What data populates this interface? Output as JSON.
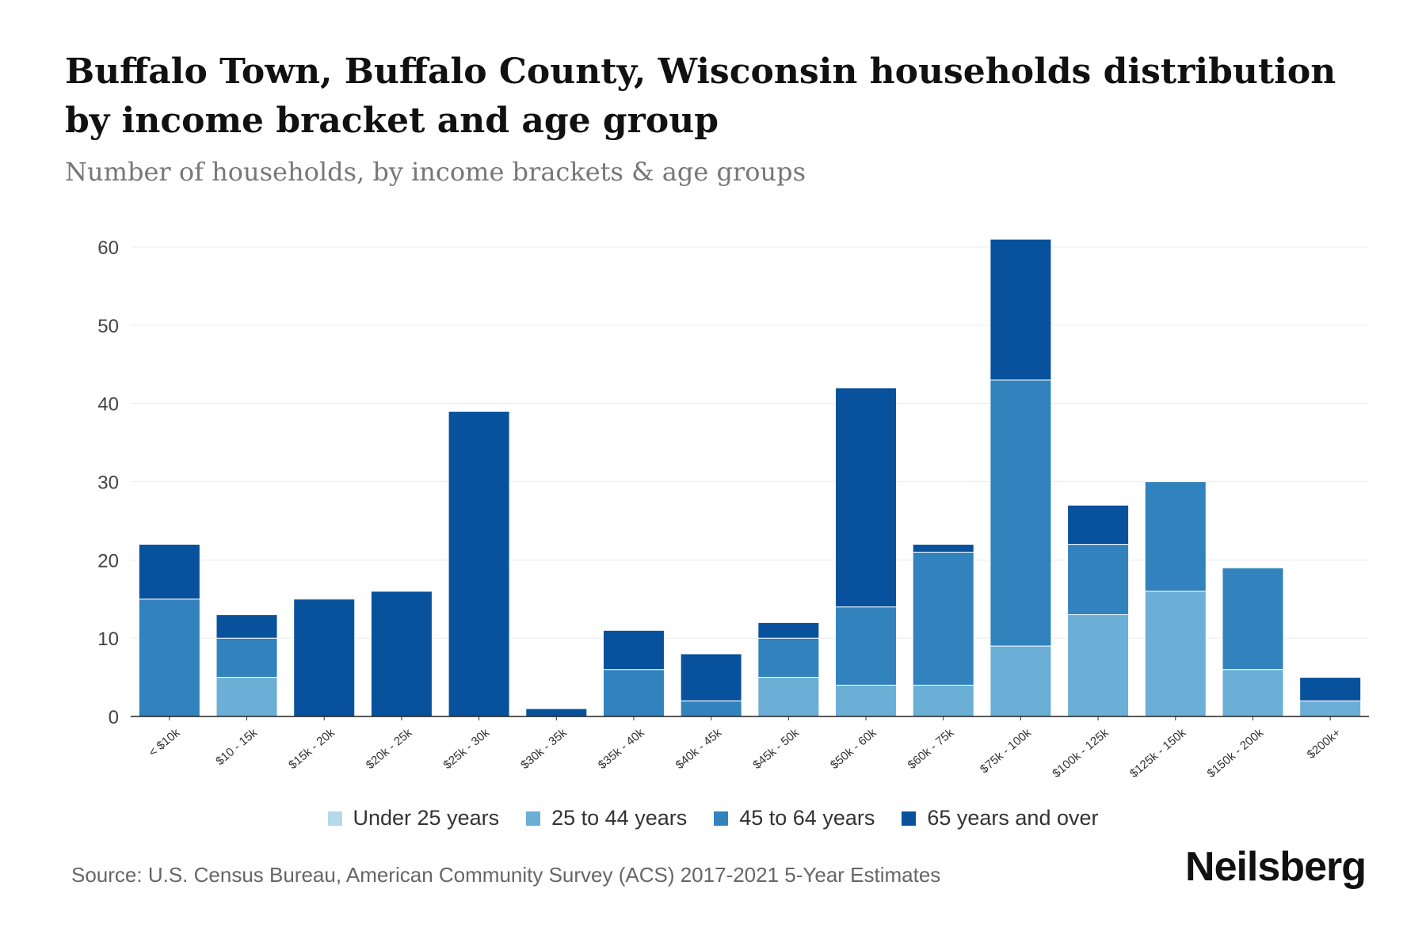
{
  "chart_data": {
    "type": "bar",
    "stacked": true,
    "title": "Buffalo Town, Buffalo County, Wisconsin households distribution by income bracket and age group",
    "subtitle": "Number of households, by income brackets & age groups",
    "xlabel": "",
    "ylabel": "",
    "ylim": [
      0,
      60
    ],
    "yticks": [
      0,
      10,
      20,
      30,
      40,
      50,
      60
    ],
    "grid": true,
    "legend_position": "bottom",
    "categories": [
      "< $10k",
      "$10 - 15k",
      "$15k - 20k",
      "$20k - 25k",
      "$25k - 30k",
      "$30k - 35k",
      "$35k - 40k",
      "$40k - 45k",
      "$45k - 50k",
      "$50k - 60k",
      "$60k - 75k",
      "$75k - 100k",
      "$100k - 125k",
      "$125k - 150k",
      "$150k - 200k",
      "$200k+"
    ],
    "series": [
      {
        "name": "Under 25 years",
        "color": "#b3d9ea",
        "values": [
          0,
          0,
          0,
          0,
          0,
          0,
          0,
          0,
          0,
          0,
          0,
          0,
          0,
          0,
          0,
          0
        ]
      },
      {
        "name": "25 to 44 years",
        "color": "#6baed6",
        "values": [
          0,
          5,
          0,
          0,
          0,
          0,
          0,
          0,
          5,
          4,
          4,
          9,
          13,
          16,
          6,
          2
        ]
      },
      {
        "name": "45 to 64 years",
        "color": "#3182bd",
        "values": [
          15,
          5,
          0,
          0,
          0,
          0,
          6,
          2,
          5,
          10,
          17,
          34,
          9,
          14,
          13,
          0
        ]
      },
      {
        "name": "65 years and over",
        "color": "#08519c",
        "values": [
          7,
          3,
          15,
          16,
          39,
          1,
          5,
          6,
          2,
          28,
          1,
          18,
          5,
          0,
          0,
          3
        ]
      }
    ]
  },
  "source": "Source: U.S. Census Bureau, American Community Survey (ACS) 2017-2021 5-Year Estimates",
  "brand": "Neilsberg"
}
